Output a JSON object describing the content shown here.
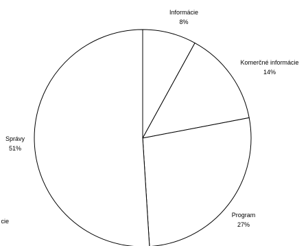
{
  "chart_data": {
    "type": "pie",
    "slices": [
      {
        "label": "Informácie",
        "value": 8,
        "value_label": "8%"
      },
      {
        "label": "Komerčné informácie",
        "value": 14,
        "value_label": "14%"
      },
      {
        "label": "Program",
        "value": 27,
        "value_label": "27%"
      },
      {
        "label": "",
        "value": 0,
        "value_label": ""
      },
      {
        "label": "Správy",
        "value": 51,
        "value_label": "51%"
      }
    ],
    "partial_labels": [
      "cie"
    ],
    "fill_color": "#ffffff",
    "stroke_color": "#000000",
    "legend": "none"
  }
}
